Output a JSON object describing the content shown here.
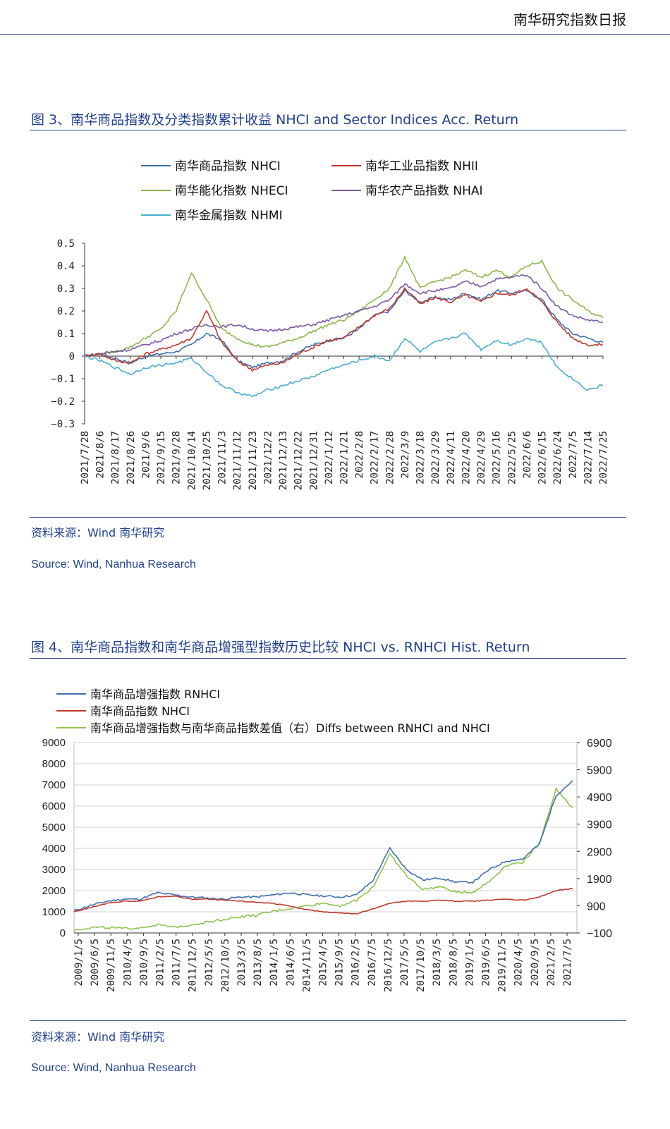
{
  "header": {
    "title": "南华研究指数日报"
  },
  "figure3": {
    "title": "图 3、南华商品指数及分类指数累计收益 NHCI and Sector Indices Acc. Return",
    "source_cn": "资料来源：Wind 南华研究",
    "source_en": "Source: Wind, Nanhua Research"
  },
  "figure4": {
    "title": "图 4、南华商品指数和南华商品增强型指数历史比较 NHCI vs. RNHCI Hist. Return",
    "source_cn": "资料来源：Wind 南华研究",
    "source_en": "Source: Wind, Nanhua Research"
  },
  "chart_data": [
    {
      "type": "line",
      "ylim": [
        -0.3,
        0.5
      ],
      "yticks": [
        "0.5",
        "0.4",
        "0.3",
        "0.2",
        "0.1",
        "0",
        "−0.1",
        "−0.2",
        "−0.3"
      ],
      "x_ticks": [
        "2021/7/28",
        "2021/8/6",
        "2021/8/17",
        "2021/8/26",
        "2021/9/6",
        "2021/9/15",
        "2021/9/28",
        "2021/10/14",
        "2021/10/25",
        "2021/11/3",
        "2021/11/12",
        "2021/11/23",
        "2021/12/2",
        "2021/12/13",
        "2021/12/22",
        "2021/12/31",
        "2022/1/12",
        "2022/1/21",
        "2022/2/8",
        "2022/2/17",
        "2022/2/28",
        "2022/3/9",
        "2022/3/18",
        "2022/3/29",
        "2022/4/11",
        "2022/4/20",
        "2022/4/29",
        "2022/5/16",
        "2022/5/25",
        "2022/6/6",
        "2022/6/15",
        "2022/6/24",
        "2022/7/5",
        "2022/7/14",
        "2022/7/25"
      ],
      "series": [
        {
          "name": "南华商品指数 NHCI",
          "color": "#3f6fb0",
          "values": [
            0,
            0.01,
            -0.01,
            -0.03,
            0.0,
            0.01,
            0.02,
            0.05,
            0.1,
            0.07,
            -0.02,
            -0.05,
            -0.03,
            -0.02,
            0.02,
            0.05,
            0.07,
            0.08,
            0.12,
            0.18,
            0.2,
            0.29,
            0.24,
            0.26,
            0.25,
            0.28,
            0.25,
            0.29,
            0.28,
            0.29,
            0.25,
            0.16,
            0.1,
            0.08,
            0.06
          ]
        },
        {
          "name": "南华工业品指数 NHII",
          "color": "#c0392b",
          "values": [
            0,
            0.01,
            -0.02,
            -0.03,
            0.01,
            0.03,
            0.05,
            0.08,
            0.2,
            0.06,
            -0.02,
            -0.06,
            -0.04,
            -0.03,
            0.01,
            0.04,
            0.07,
            0.08,
            0.13,
            0.18,
            0.21,
            0.3,
            0.23,
            0.26,
            0.24,
            0.27,
            0.24,
            0.28,
            0.27,
            0.3,
            0.24,
            0.15,
            0.08,
            0.05,
            0.05
          ]
        },
        {
          "name": "南华能化指数 NHECI",
          "color": "#8db84a",
          "values": [
            0,
            0.01,
            0.02,
            0.04,
            0.08,
            0.12,
            0.2,
            0.37,
            0.25,
            0.12,
            0.08,
            0.05,
            0.04,
            0.06,
            0.08,
            0.11,
            0.14,
            0.16,
            0.2,
            0.25,
            0.3,
            0.44,
            0.3,
            0.33,
            0.35,
            0.38,
            0.35,
            0.38,
            0.35,
            0.4,
            0.42,
            0.3,
            0.25,
            0.2,
            0.17
          ]
        },
        {
          "name": "南华农产品指数 NHAI",
          "color": "#7a5aa8",
          "values": [
            0,
            0.01,
            0.02,
            0.03,
            0.05,
            0.07,
            0.1,
            0.12,
            0.14,
            0.13,
            0.14,
            0.12,
            0.11,
            0.12,
            0.13,
            0.14,
            0.16,
            0.18,
            0.2,
            0.22,
            0.25,
            0.32,
            0.28,
            0.29,
            0.3,
            0.33,
            0.31,
            0.34,
            0.35,
            0.36,
            0.3,
            0.22,
            0.18,
            0.16,
            0.15
          ]
        },
        {
          "name": "南华金属指数 NHMI",
          "color": "#4aaed0",
          "values": [
            0,
            -0.02,
            -0.05,
            -0.08,
            -0.05,
            -0.04,
            -0.03,
            -0.01,
            -0.07,
            -0.13,
            -0.16,
            -0.18,
            -0.15,
            -0.13,
            -0.11,
            -0.09,
            -0.06,
            -0.04,
            -0.02,
            0.0,
            -0.02,
            0.08,
            0.02,
            0.06,
            0.08,
            0.1,
            0.03,
            0.07,
            0.05,
            0.08,
            0.06,
            -0.05,
            -0.1,
            -0.15,
            -0.13
          ]
        }
      ]
    },
    {
      "type": "line",
      "ylim": [
        0,
        9000
      ],
      "y2lim": [
        -100,
        6900
      ],
      "yticks": [
        "9000",
        "8000",
        "7000",
        "6000",
        "5000",
        "4000",
        "3000",
        "2000",
        "1000",
        "0"
      ],
      "y2ticks": [
        "6900",
        "5900",
        "4900",
        "3900",
        "2900",
        "1900",
        "900",
        "−100"
      ],
      "x_ticks": [
        "2009/1/5",
        "2009/6/5",
        "2009/11/5",
        "2010/4/5",
        "2010/9/5",
        "2011/2/5",
        "2011/7/5",
        "2011/12/5",
        "2012/5/5",
        "2012/10/5",
        "2013/3/5",
        "2013/8/5",
        "2014/1/5",
        "2014/6/5",
        "2014/11/5",
        "2015/4/5",
        "2015/9/5",
        "2016/2/5",
        "2016/7/5",
        "2016/12/5",
        "2017/5/5",
        "2017/10/5",
        "2018/3/5",
        "2018/8/5",
        "2019/1/5",
        "2019/6/5",
        "2019/11/5",
        "2020/4/5",
        "2020/9/5",
        "2021/2/5",
        "2021/7/5"
      ],
      "series": [
        {
          "name": "南华商品增强指数 RNHCI",
          "color": "#3f6fb0",
          "axis": "left",
          "values": [
            1050,
            1300,
            1500,
            1600,
            1600,
            1900,
            1800,
            1700,
            1650,
            1600,
            1700,
            1700,
            1800,
            1900,
            1800,
            1750,
            1700,
            1800,
            2500,
            4000,
            3000,
            2500,
            2600,
            2400,
            2400,
            3000,
            3400,
            3500,
            4200,
            6500,
            7200
          ]
        },
        {
          "name": "南华商品指数 NHCI",
          "color": "#c0392b",
          "axis": "left",
          "values": [
            1000,
            1200,
            1400,
            1500,
            1500,
            1700,
            1750,
            1600,
            1600,
            1550,
            1500,
            1450,
            1400,
            1250,
            1100,
            1000,
            950,
            900,
            1150,
            1400,
            1500,
            1500,
            1550,
            1500,
            1500,
            1550,
            1600,
            1550,
            1700,
            2000,
            2100
          ]
        },
        {
          "name": "南华商品增强指数与南华商品指数差值（右）Diffs between RNHCI and NHCI",
          "color": "#8cc44a",
          "axis": "right",
          "values": [
            0,
            100,
            100,
            50,
            100,
            200,
            100,
            200,
            300,
            400,
            500,
            550,
            700,
            800,
            900,
            1000,
            900,
            1100,
            1600,
            2800,
            2000,
            1500,
            1600,
            1400,
            1400,
            1800,
            2400,
            2500,
            3200,
            5200,
            4500
          ]
        }
      ]
    }
  ]
}
